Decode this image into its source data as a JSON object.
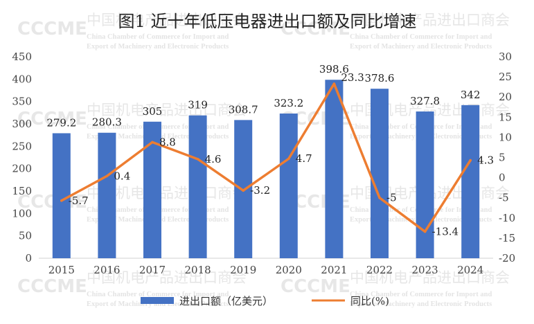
{
  "watermark": {
    "cn": "中国机电产品进出口商会",
    "en1": "China Chamber of Commerce for Import and",
    "en2": "Export of Machinery and Electronic Products",
    "logo": "CCCME"
  },
  "chart_data": {
    "type": "bar",
    "title": "图1  近十年低压电器进出口额及同比增速",
    "categories": [
      "2015",
      "2016",
      "2017",
      "2018",
      "2019",
      "2020",
      "2021",
      "2022",
      "2023",
      "2024"
    ],
    "series": [
      {
        "name": "进出口额（亿美元）",
        "type": "bar",
        "axis": "left",
        "color": "#4472C4",
        "values": [
          279.2,
          280.3,
          305,
          319,
          308.7,
          323.2,
          398.6,
          378.6,
          327.8,
          342
        ],
        "labels": [
          "279.2",
          "280.3",
          "305",
          "319",
          "308.7",
          "323.2",
          "398.6",
          "378.6",
          "327.8",
          "342"
        ]
      },
      {
        "name": "同比(%)",
        "type": "line",
        "axis": "right",
        "color": "#ED7D31",
        "values": [
          -5.7,
          0.4,
          8.8,
          4.6,
          -3.2,
          4.7,
          23.3,
          -5,
          -13.4,
          4.3
        ],
        "labels": [
          "-5.7",
          "0.4",
          "8.8",
          "4.6",
          "-3.2",
          "4.7",
          "23.3",
          "-5",
          "-13.4",
          "4.3"
        ]
      }
    ],
    "y_left": {
      "min": 0,
      "max": 450,
      "step": 50,
      "ticks": [
        "0",
        "50",
        "100",
        "150",
        "200",
        "250",
        "300",
        "350",
        "400",
        "450"
      ]
    },
    "y_right": {
      "min": -20,
      "max": 30,
      "step": 5,
      "ticks": [
        "-20",
        "-15",
        "-10",
        "-5",
        "0",
        "5",
        "10",
        "15",
        "20",
        "25",
        "30"
      ]
    },
    "grid": false,
    "legend_position": "bottom"
  }
}
